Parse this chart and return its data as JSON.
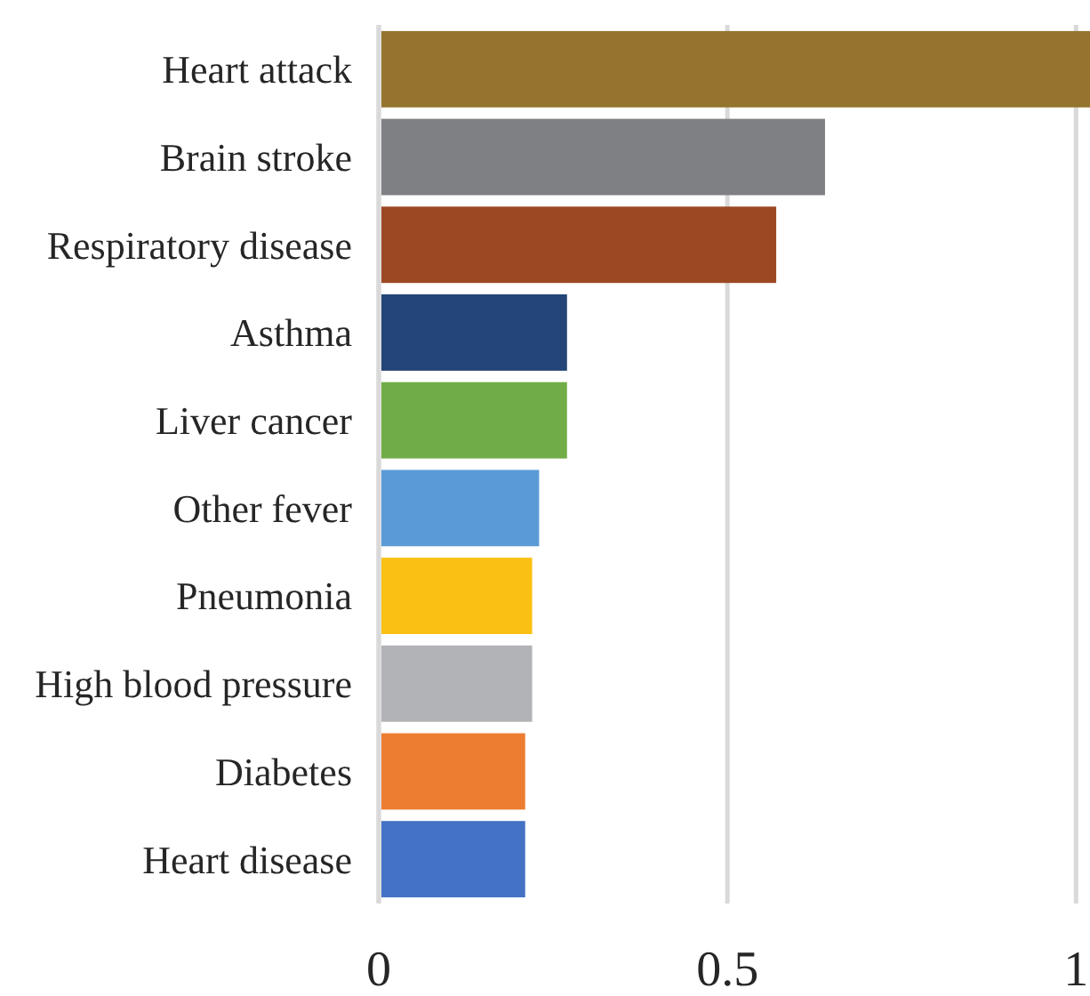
{
  "chart_data": {
    "type": "bar",
    "orientation": "horizontal",
    "categories": [
      "Heart attack",
      "Brain stroke",
      "Respiratory disease",
      "Asthma",
      "Liver cancer",
      "Other fever",
      "Pneumonia",
      "High blood pressure",
      "Diabetes",
      "Heart disease"
    ],
    "values": [
      1.02,
      0.64,
      0.57,
      0.27,
      0.27,
      0.23,
      0.22,
      0.22,
      0.21,
      0.21
    ],
    "colors": [
      "#95752e",
      "#7f8083",
      "#9c4823",
      "#234577",
      "#70ad47",
      "#5b9bd5",
      "#fbc014",
      "#b2b3b6",
      "#ed7d31",
      "#4472c4"
    ],
    "xlim": [
      0,
      1.02
    ],
    "xticks": [
      0,
      0.5,
      1
    ],
    "grid": "x"
  }
}
